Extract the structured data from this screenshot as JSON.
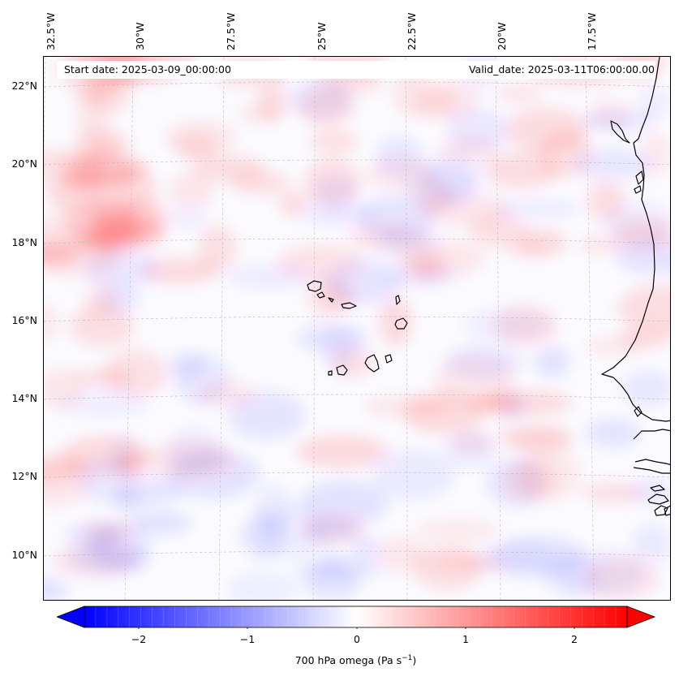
{
  "map": {
    "start_date": "Start date: 2025-03-09_00:00:00",
    "valid_date": "Valid_date: 2025-03-11T06:00:00.00",
    "lon_labels": [
      "32.5°W",
      "30°W",
      "27.5°W",
      "25°W",
      "22.5°W",
      "20°W",
      "17.5°W"
    ],
    "lat_labels": [
      "22°N",
      "20°N",
      "18°N",
      "16°N",
      "14°N",
      "12°N",
      "10°N"
    ],
    "field_colors": {
      "negative": "#0000ff",
      "zero": "#ffffff",
      "positive": "#ff0000"
    },
    "coastline_color": "#000000"
  },
  "colorbar": {
    "ticks": [
      "−2",
      "−1",
      "0",
      "1",
      "2"
    ],
    "label_main": "700 hPa omega (Pa s",
    "label_exp": "−1",
    "label_end": ")"
  }
}
